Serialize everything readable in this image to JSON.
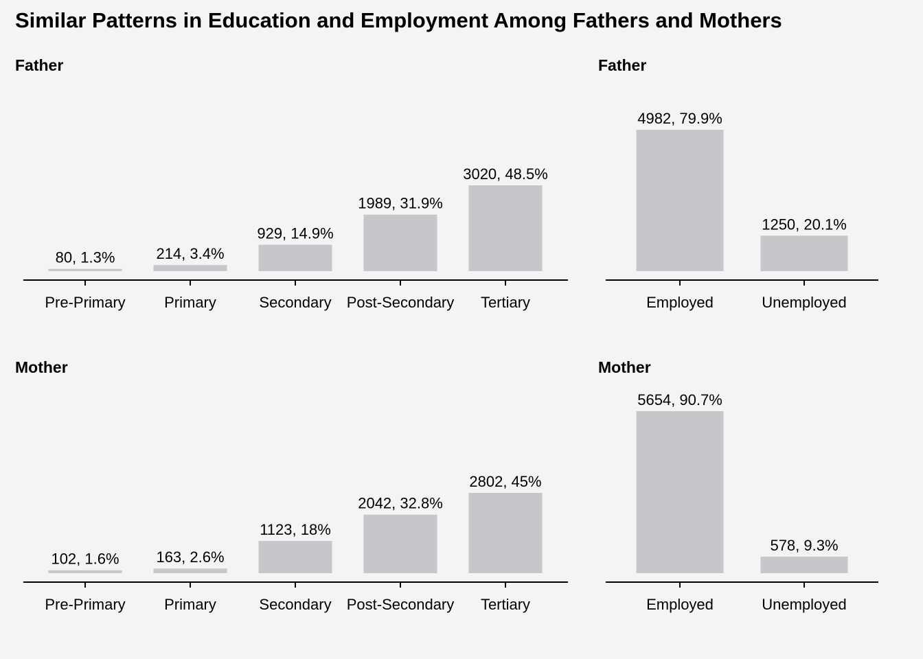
{
  "title": "Similar Patterns in Education and Employment Among Fathers and Mothers",
  "colors": {
    "bar": "#c6c7ca",
    "background": "#f4f4f4",
    "axis": "#000000"
  },
  "chart_data": [
    {
      "id": "father-education",
      "type": "bar",
      "title": "Father",
      "categories": [
        "Pre-Primary",
        "Primary",
        "Secondary",
        "Post-Secondary",
        "Tertiary"
      ],
      "values": [
        80,
        214,
        929,
        1989,
        3020
      ],
      "labels": [
        "80, 1.3%",
        "214, 3.4%",
        "929, 14.9%",
        "1989, 31.9%",
        "3020, 48.5%"
      ],
      "ylim": [
        0,
        3020
      ]
    },
    {
      "id": "father-employment",
      "type": "bar",
      "title": "Father",
      "categories": [
        "Employed",
        "Unemployed"
      ],
      "values": [
        4982,
        1250
      ],
      "labels": [
        "4982, 79.9%",
        "1250, 20.1%"
      ],
      "ylim": [
        0,
        5654
      ]
    },
    {
      "id": "mother-education",
      "type": "bar",
      "title": "Mother",
      "categories": [
        "Pre-Primary",
        "Primary",
        "Secondary",
        "Post-Secondary",
        "Tertiary"
      ],
      "values": [
        102,
        163,
        1123,
        2042,
        2802
      ],
      "labels": [
        "102, 1.6%",
        "163, 2.6%",
        "1123, 18%",
        "2042, 32.8%",
        "2802, 45%"
      ],
      "ylim": [
        0,
        3020
      ]
    },
    {
      "id": "mother-employment",
      "type": "bar",
      "title": "Mother",
      "categories": [
        "Employed",
        "Unemployed"
      ],
      "values": [
        5654,
        578
      ],
      "labels": [
        "5654, 90.7%",
        "578, 9.3%"
      ],
      "ylim": [
        0,
        5654
      ]
    }
  ]
}
